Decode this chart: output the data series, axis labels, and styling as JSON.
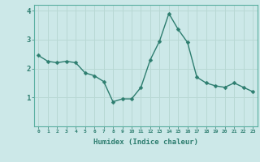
{
  "x": [
    0,
    1,
    2,
    3,
    4,
    5,
    6,
    7,
    8,
    9,
    10,
    11,
    12,
    13,
    14,
    15,
    16,
    17,
    18,
    19,
    20,
    21,
    22,
    23
  ],
  "y": [
    2.45,
    2.25,
    2.2,
    2.25,
    2.2,
    1.85,
    1.75,
    1.55,
    0.85,
    0.95,
    0.95,
    1.35,
    2.3,
    2.95,
    3.9,
    3.35,
    2.9,
    1.7,
    1.5,
    1.4,
    1.35,
    1.5,
    1.35,
    1.2
  ],
  "xlabel": "Humidex (Indice chaleur)",
  "ylim": [
    0,
    4.2
  ],
  "xlim": [
    -0.5,
    23.5
  ],
  "yticks": [
    1,
    2,
    3,
    4
  ],
  "xticks": [
    0,
    1,
    2,
    3,
    4,
    5,
    6,
    7,
    8,
    9,
    10,
    11,
    12,
    13,
    14,
    15,
    16,
    17,
    18,
    19,
    20,
    21,
    22,
    23
  ],
  "line_color": "#2d7d6f",
  "marker_color": "#2d7d6f",
  "bg_color": "#cce8e8",
  "grid_color": "#b8d8d4",
  "tick_color": "#2d7d6f",
  "label_color": "#2d7d6f",
  "axis_color": "#5aafa0"
}
